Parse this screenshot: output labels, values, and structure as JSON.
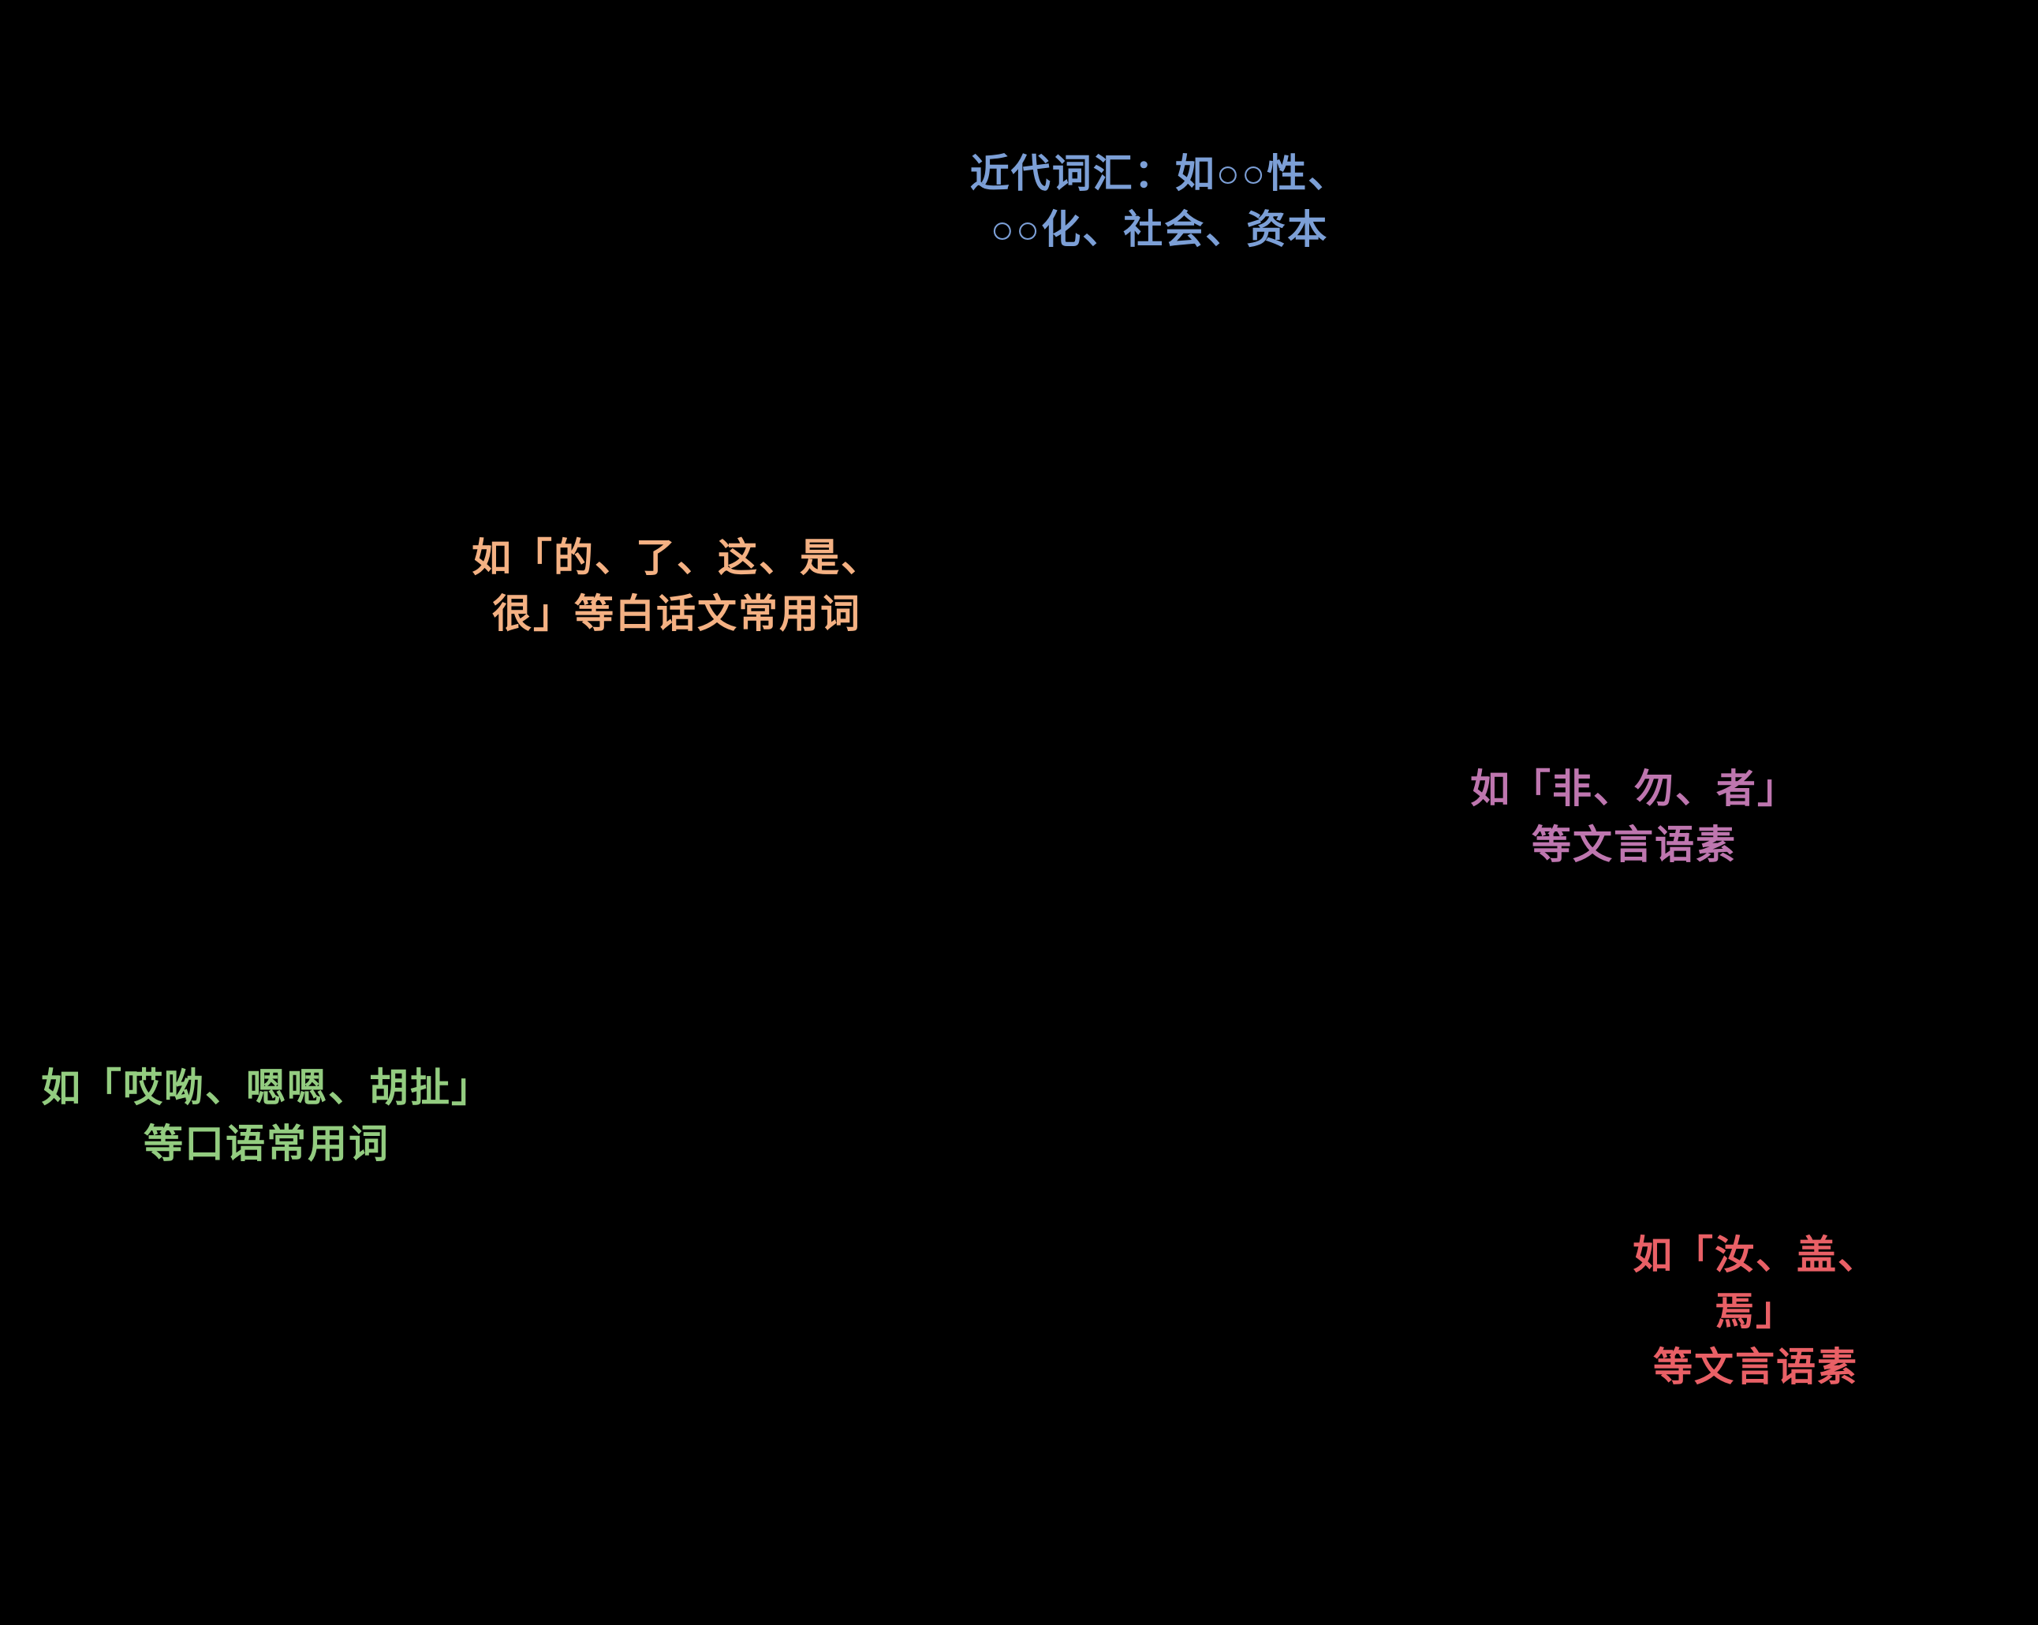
{
  "background_color": "#000000",
  "labels": [
    {
      "id": "modern-vocabulary",
      "text": "近代词汇：如○○性、\n○○化、社会、资本",
      "color": "#7C9FD6"
    },
    {
      "id": "baihua-common-words",
      "text": "如「的、了、这、是、\n很」等白话文常用词",
      "color": "#F4B183"
    },
    {
      "id": "wenyan-morphemes-common",
      "text": "如「非、勿、者」\n等文言语素",
      "color": "#BE76AF"
    },
    {
      "id": "colloquial-common-words",
      "text": "如「哎呦、嗯嗯、胡扯」\n等口语常用词",
      "color": "#93CC80"
    },
    {
      "id": "wenyan-morphemes-archaic",
      "text": "如「汝、盖、焉」\n等文言语素",
      "color": "#E96066"
    }
  ]
}
